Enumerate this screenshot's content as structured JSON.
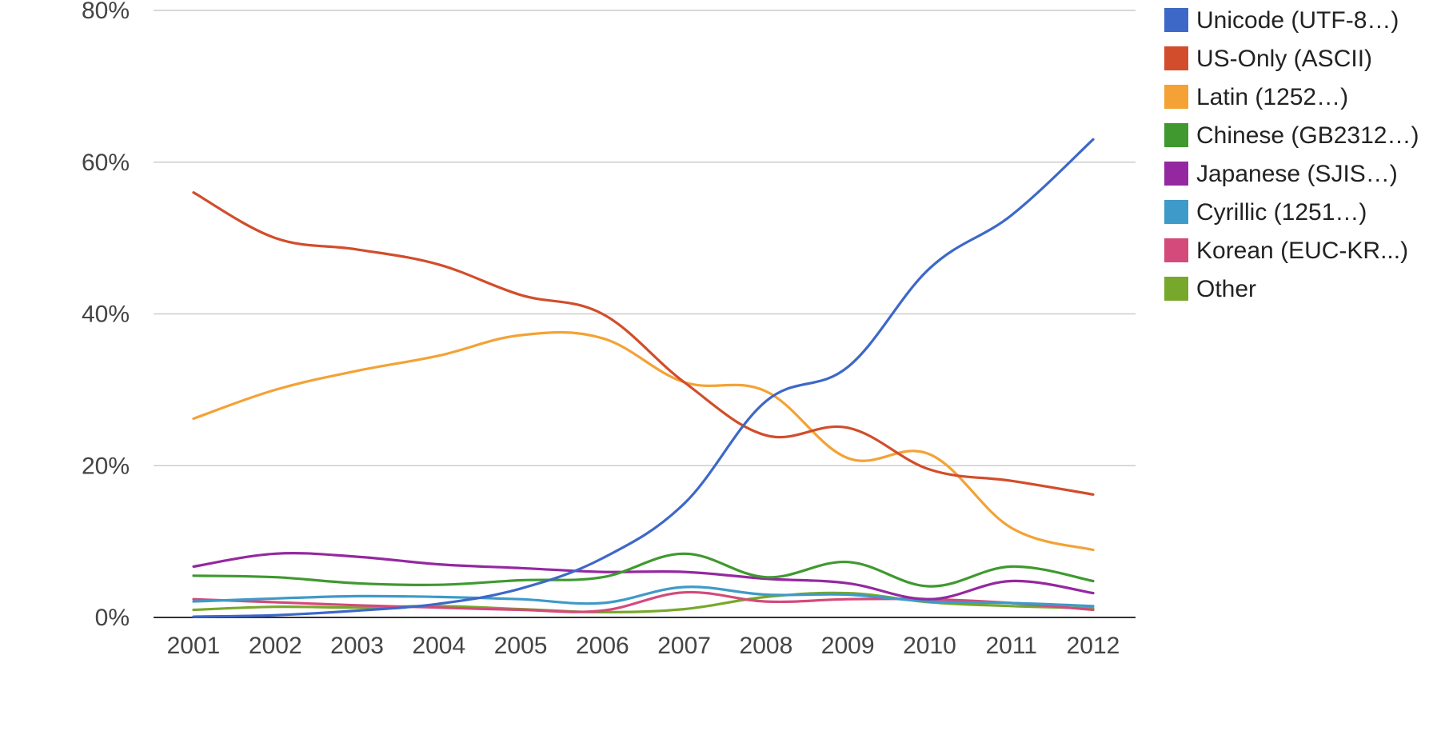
{
  "chart_data": {
    "type": "line",
    "title": "",
    "xlabel": "",
    "ylabel": "",
    "categories": [
      "2001",
      "2002",
      "2003",
      "2004",
      "2005",
      "2006",
      "2007",
      "2008",
      "2009",
      "2010",
      "2011",
      "2012"
    ],
    "y_ticks": [
      "0%",
      "20%",
      "40%",
      "60%",
      "80%"
    ],
    "ylim": [
      0,
      80
    ],
    "y_unit": "%",
    "grid": true,
    "legend_position": "right",
    "series": [
      {
        "name": "Unicode (UTF-8…)",
        "color": "#3d68c8",
        "values": [
          0.1,
          0.3,
          0.9,
          1.8,
          3.8,
          7.8,
          15.0,
          28.5,
          33.0,
          46.0,
          53.0,
          63.0
        ]
      },
      {
        "name": "US-Only (ASCII)",
        "color": "#d24d2b",
        "values": [
          56.0,
          50.0,
          48.5,
          46.5,
          42.5,
          40.0,
          31.0,
          24.0,
          25.0,
          19.5,
          18.0,
          16.2
        ]
      },
      {
        "name": "Latin (1252…)",
        "color": "#f4a235",
        "values": [
          26.2,
          30.0,
          32.5,
          34.5,
          37.2,
          36.8,
          31.0,
          29.8,
          21.0,
          21.5,
          11.8,
          8.9
        ]
      },
      {
        "name": "Chinese (GB2312…)",
        "color": "#3f992f",
        "values": [
          5.5,
          5.3,
          4.5,
          4.3,
          4.9,
          5.3,
          8.4,
          5.3,
          7.3,
          4.1,
          6.7,
          4.8
        ]
      },
      {
        "name": "Japanese (SJIS…)",
        "color": "#9428a0",
        "values": [
          6.7,
          8.4,
          8.0,
          7.0,
          6.5,
          6.0,
          6.0,
          5.1,
          4.5,
          2.4,
          4.8,
          3.2
        ]
      },
      {
        "name": "Cyrillic (1251…)",
        "color": "#3e9ac8",
        "values": [
          2.1,
          2.5,
          2.8,
          2.7,
          2.4,
          1.9,
          4.0,
          3.0,
          3.0,
          2.1,
          1.9,
          1.5
        ]
      },
      {
        "name": "Korean (EUC-KR...)",
        "color": "#d44a7a",
        "values": [
          2.4,
          2.0,
          1.6,
          1.3,
          1.0,
          0.9,
          3.3,
          2.1,
          2.4,
          2.4,
          1.9,
          1.0
        ]
      },
      {
        "name": "Other",
        "color": "#77a82c",
        "values": [
          1.0,
          1.4,
          1.3,
          1.5,
          1.1,
          0.7,
          1.1,
          2.7,
          3.2,
          2.0,
          1.5,
          1.2
        ]
      }
    ]
  }
}
